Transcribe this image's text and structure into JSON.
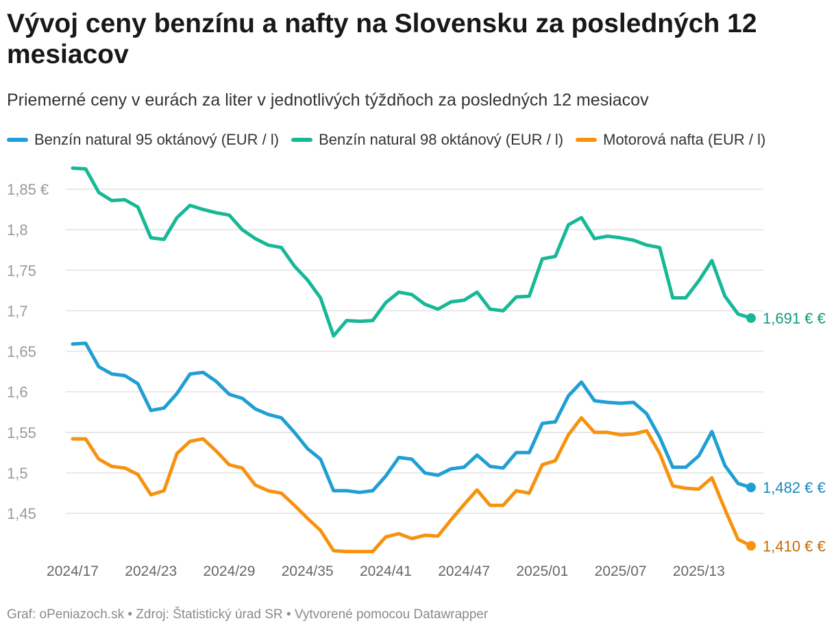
{
  "title": "Vývoj ceny benzínu a nafty na Slovensku za posledných 12 mesiacov",
  "subtitle": "Priemerné ceny v eurách za liter v jednotlivých týždňoch za posledných 12 mesiacov",
  "footer": {
    "source_label": "Graf: oPeniazoch.sk",
    "separator": "•",
    "source": "Zdroj: Štatistický úrad SR",
    "tool": "Vytvorené pomocou Datawrapper"
  },
  "colors": {
    "benzin95": "#1f9fd3",
    "benzin98": "#17b896",
    "nafta": "#f7920f",
    "benzin95_label": "#178ab8",
    "benzin98_label": "#0f9b7d",
    "nafta_label": "#c96b00",
    "grid": "#e1e1e1",
    "tick": "#9a9a9a"
  },
  "chart_data": {
    "type": "line",
    "title": "Vývoj ceny benzínu a nafty na Slovensku za posledných 12 mesiacov",
    "xlabel": "",
    "ylabel": "",
    "ylim": [
      1.4,
      1.88
    ],
    "y_ticks": [
      1.45,
      1.5,
      1.55,
      1.6,
      1.65,
      1.7,
      1.75,
      1.8,
      1.85
    ],
    "y_tick_labels": [
      "1,45",
      "1,5",
      "1,55",
      "1,6",
      "1,65",
      "1,7",
      "1,75",
      "1,8",
      "1,85 €"
    ],
    "x_tick_labels": [
      "2024/17",
      "2024/23",
      "2024/29",
      "2024/35",
      "2024/41",
      "2024/47",
      "2025/01",
      "2025/07",
      "2025/13"
    ],
    "x_tick_indices": [
      0,
      6,
      12,
      18,
      24,
      30,
      36,
      42,
      48
    ],
    "legend_position": "top-left",
    "series": [
      {
        "name": "Benzín natural 95 oktánový (EUR / l)",
        "color_key": "benzin95",
        "end_label": "1,482 € €",
        "values": [
          1.659,
          1.66,
          1.631,
          1.622,
          1.62,
          1.61,
          1.577,
          1.58,
          1.598,
          1.622,
          1.624,
          1.613,
          1.597,
          1.592,
          1.579,
          1.572,
          1.568,
          1.55,
          1.53,
          1.517,
          1.478,
          1.478,
          1.476,
          1.478,
          1.496,
          1.519,
          1.517,
          1.5,
          1.497,
          1.505,
          1.507,
          1.522,
          1.508,
          1.506,
          1.525,
          1.525,
          1.561,
          1.563,
          1.595,
          1.612,
          1.589,
          1.587,
          1.586,
          1.587,
          1.573,
          1.544,
          1.507,
          1.507,
          1.521,
          1.551,
          1.509,
          1.487,
          1.482
        ]
      },
      {
        "name": "Benzín natural 98 oktánový (EUR / l)",
        "color_key": "benzin98",
        "end_label": "1,691 € €",
        "values": [
          1.876,
          1.875,
          1.846,
          1.836,
          1.837,
          1.828,
          1.79,
          1.788,
          1.815,
          1.83,
          1.825,
          1.821,
          1.818,
          1.8,
          1.789,
          1.781,
          1.778,
          1.755,
          1.738,
          1.716,
          1.669,
          1.688,
          1.687,
          1.688,
          1.71,
          1.723,
          1.72,
          1.708,
          1.702,
          1.711,
          1.713,
          1.723,
          1.702,
          1.7,
          1.717,
          1.718,
          1.764,
          1.767,
          1.806,
          1.815,
          1.789,
          1.792,
          1.79,
          1.787,
          1.781,
          1.778,
          1.716,
          1.716,
          1.737,
          1.762,
          1.718,
          1.696,
          1.691
        ]
      },
      {
        "name": "Motorová nafta (EUR / l)",
        "color_key": "nafta",
        "end_label": "1,410 € €",
        "values": [
          1.542,
          1.542,
          1.517,
          1.508,
          1.506,
          1.498,
          1.473,
          1.478,
          1.524,
          1.539,
          1.542,
          1.527,
          1.51,
          1.506,
          1.485,
          1.478,
          1.475,
          1.46,
          1.444,
          1.429,
          1.404,
          1.403,
          1.403,
          1.403,
          1.421,
          1.425,
          1.419,
          1.423,
          1.422,
          1.442,
          1.461,
          1.479,
          1.46,
          1.46,
          1.478,
          1.475,
          1.51,
          1.515,
          1.547,
          1.568,
          1.55,
          1.55,
          1.547,
          1.548,
          1.552,
          1.524,
          1.484,
          1.481,
          1.48,
          1.494,
          1.455,
          1.418,
          1.41
        ]
      }
    ]
  }
}
